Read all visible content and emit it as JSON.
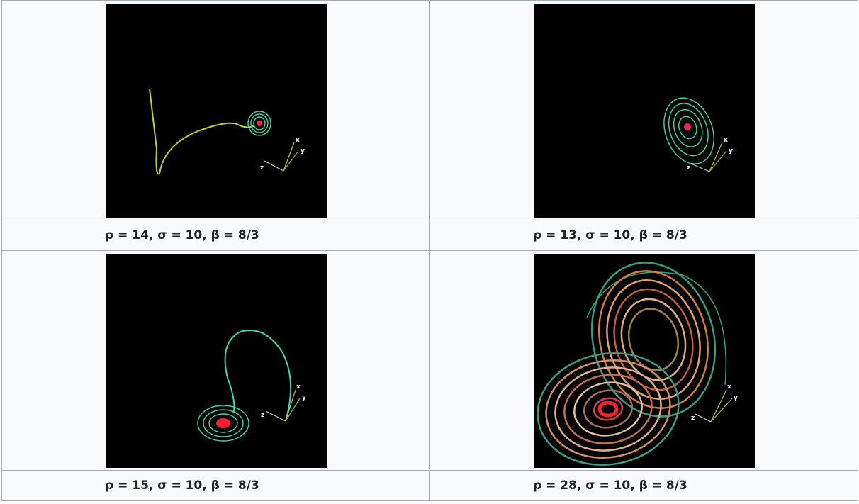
{
  "table": {
    "rows": [
      {
        "caption": "ρ = 14, σ = 10, β = 8/3",
        "axes": [
          "x",
          "y",
          "z"
        ]
      },
      {
        "caption": "ρ = 13, σ = 10, β = 8/3",
        "axes": [
          "x",
          "y",
          "z"
        ]
      },
      {
        "caption": "ρ = 15, σ = 10, β = 8/3",
        "axes": [
          "x",
          "y",
          "z"
        ]
      },
      {
        "caption": "ρ = 28, σ = 10, β = 8/3",
        "axes": [
          "x",
          "y",
          "z"
        ]
      }
    ]
  }
}
